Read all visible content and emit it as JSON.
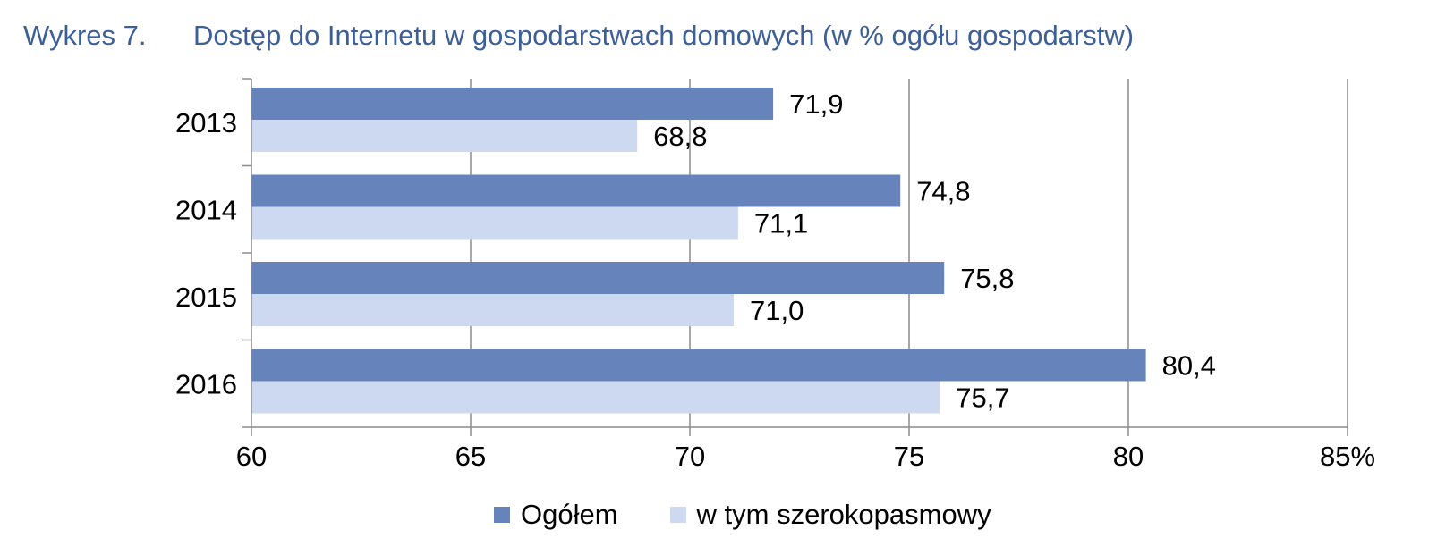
{
  "chart_data": {
    "type": "bar",
    "orientation": "horizontal",
    "title_number": "Wykres 7.",
    "title": "Dostęp do Internetu w gospodarstwach domowych (w % ogółu gospodarstw)",
    "categories": [
      "2013",
      "2014",
      "2015",
      "2016"
    ],
    "series": [
      {
        "name": "Ogółem",
        "color": "#6683bb",
        "values": [
          71.9,
          74.8,
          75.8,
          80.4
        ],
        "labels": [
          "71,9",
          "74,8",
          "75,8",
          "80,4"
        ]
      },
      {
        "name": "w tym szerokopasmowy",
        "color": "#cdd9f0",
        "values": [
          68.8,
          71.1,
          71.0,
          75.7
        ],
        "labels": [
          "68,8",
          "71,1",
          "71,0",
          "75,7"
        ]
      }
    ],
    "xlim": [
      60,
      85
    ],
    "xticks": [
      60,
      65,
      70,
      75,
      80,
      85
    ],
    "xtick_labels": [
      "60",
      "65",
      "70",
      "75",
      "80",
      "85%"
    ],
    "grid": "vertical",
    "legend_position": "bottom"
  }
}
